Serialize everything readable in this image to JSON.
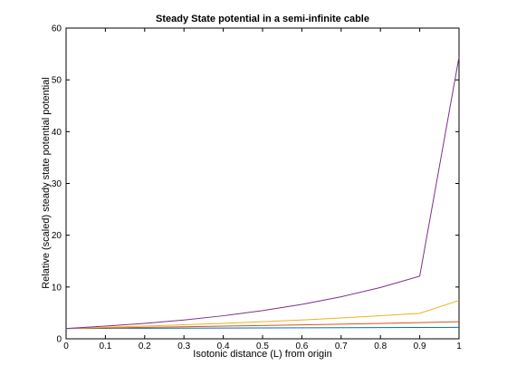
{
  "chart_data": {
    "type": "line",
    "title": "Steady State potential in a semi-infinite cable",
    "xlabel": "Isotonic distance (L) from origin",
    "ylabel": "Relative (scaled) steady state potential potential",
    "xlim": [
      0,
      1
    ],
    "ylim": [
      0,
      60
    ],
    "xticks": [
      "0",
      "0.1",
      "0.2",
      "0.3",
      "0.4",
      "0.5",
      "0.6",
      "0.7",
      "0.8",
      "0.9",
      "1"
    ],
    "yticks": [
      "0",
      "10",
      "20",
      "30",
      "40",
      "50",
      "60"
    ],
    "grid": false,
    "legend": "none",
    "x": [
      0,
      0.1,
      0.2,
      0.3,
      0.4,
      0.5,
      0.6,
      0.7,
      0.8,
      0.9,
      1.0
    ],
    "series": [
      {
        "color": "#0072bd",
        "values": [
          2.0,
          2.02,
          2.04,
          2.06,
          2.08,
          2.1,
          2.12,
          2.14,
          2.16,
          2.18,
          2.2
        ]
      },
      {
        "color": "#d95319",
        "values": [
          2.0,
          2.1,
          2.21,
          2.32,
          2.44,
          2.56,
          2.69,
          2.83,
          2.97,
          3.12,
          3.3
        ]
      },
      {
        "color": "#edb120",
        "values": [
          2.0,
          2.21,
          2.44,
          2.7,
          2.98,
          3.3,
          3.64,
          4.03,
          4.45,
          4.92,
          7.4
        ]
      },
      {
        "color": "#7e2f8e",
        "values": [
          2.0,
          2.44,
          2.98,
          3.64,
          4.45,
          5.44,
          6.64,
          8.11,
          9.91,
          12.1,
          54.4
        ]
      }
    ]
  }
}
